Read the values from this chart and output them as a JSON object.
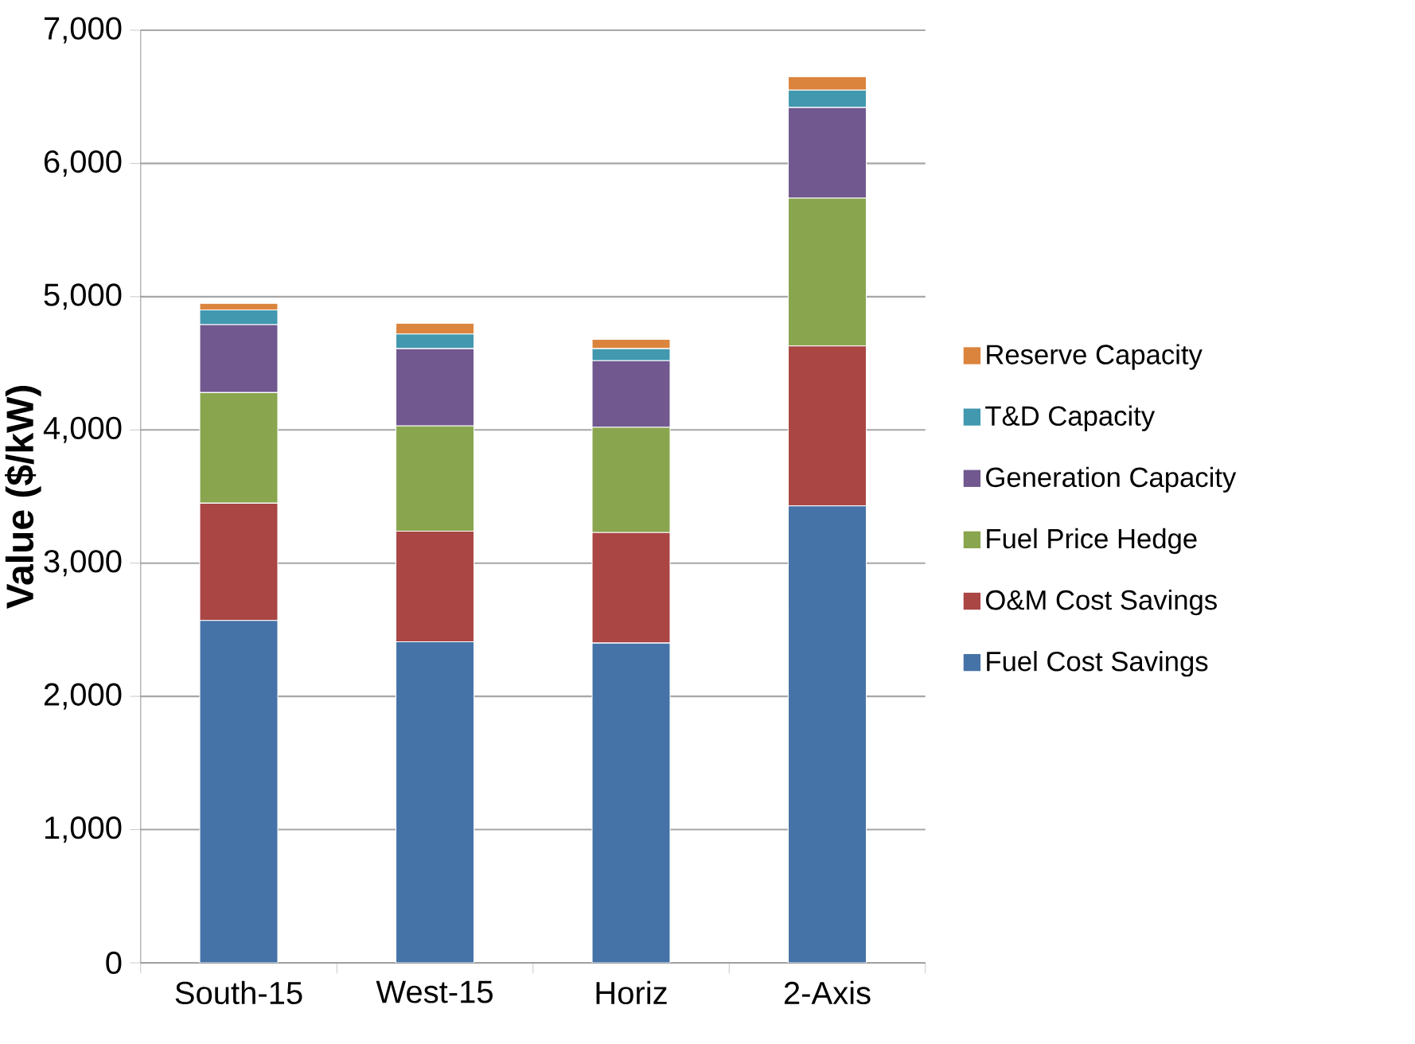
{
  "chart_data": {
    "type": "bar",
    "stacked": true,
    "ylabel": "Value ($/kW)",
    "categories": [
      "South-15",
      "West-15",
      "Horiz",
      "2-Axis"
    ],
    "series": [
      {
        "name": "Fuel Cost Savings",
        "color": "#4573a7",
        "values": [
          2570,
          2410,
          2400,
          3430
        ]
      },
      {
        "name": "O&M Cost Savings",
        "color": "#aa4644",
        "values": [
          880,
          830,
          830,
          1200
        ]
      },
      {
        "name": "Fuel Price Hedge",
        "color": "#89a54e",
        "values": [
          830,
          790,
          790,
          1110
        ]
      },
      {
        "name": "Generation Capacity",
        "color": "#71588f",
        "values": [
          510,
          580,
          500,
          680
        ]
      },
      {
        "name": "T&D Capacity",
        "color": "#4198af",
        "values": [
          110,
          110,
          90,
          130
        ]
      },
      {
        "name": "Reserve Capacity",
        "color": "#db843d",
        "values": [
          50,
          80,
          70,
          100
        ]
      }
    ],
    "ylim": [
      0,
      7000
    ],
    "yticks": [
      0,
      {
        "value": 1000,
        "label": "1,000"
      },
      {
        "value": 2000,
        "label": "2,000"
      },
      {
        "value": 3000,
        "label": "3,000"
      },
      {
        "value": 4000,
        "label": "4,000"
      },
      {
        "value": 5000,
        "label": "5,000"
      },
      {
        "value": 6000,
        "label": "6,000"
      },
      {
        "value": 7000,
        "label": "7,000"
      }
    ],
    "grid": "y",
    "legend": "right"
  }
}
